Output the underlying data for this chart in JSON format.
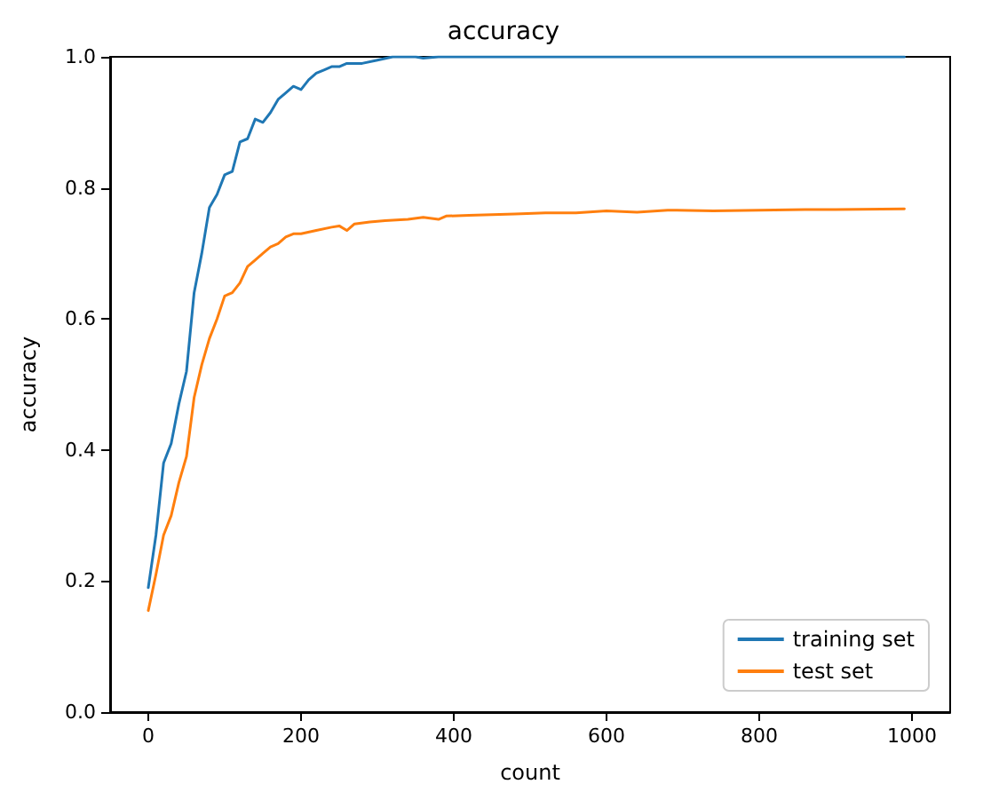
{
  "chart_data": {
    "type": "line",
    "title": "accuracy",
    "xlabel": "count",
    "ylabel": "accuracy",
    "xlim": [
      -50,
      1050
    ],
    "xticks": [
      0,
      200,
      400,
      600,
      800,
      1000
    ],
    "ylim": [
      0,
      1
    ],
    "yticks": [
      {
        "value": 0,
        "label": "0.0"
      },
      0.2,
      0.4,
      0.6,
      0.8,
      {
        "value": 1,
        "label": "1.0"
      }
    ],
    "grid": false,
    "legend": "bottom right",
    "marker": "none",
    "line_style": "solid",
    "series": [
      {
        "name": "training set",
        "color": "#1f77b4",
        "x": [
          0,
          10,
          20,
          30,
          40,
          50,
          60,
          70,
          80,
          90,
          100,
          110,
          120,
          130,
          140,
          150,
          160,
          170,
          180,
          190,
          200,
          210,
          220,
          230,
          240,
          250,
          260,
          280,
          300,
          320,
          350,
          360,
          380,
          450,
          550,
          650,
          750,
          850,
          990
        ],
        "values": [
          0.19,
          0.27,
          0.38,
          0.41,
          0.47,
          0.52,
          0.64,
          0.7,
          0.77,
          0.79,
          0.82,
          0.825,
          0.87,
          0.875,
          0.905,
          0.9,
          0.915,
          0.935,
          0.945,
          0.955,
          0.95,
          0.965,
          0.975,
          0.98,
          0.985,
          0.985,
          0.99,
          0.99,
          0.995,
          1,
          1,
          0.998,
          1,
          1,
          1,
          1,
          1,
          1,
          1
        ]
      },
      {
        "name": "test set",
        "color": "#ff7f0e",
        "x": [
          0,
          10,
          20,
          30,
          40,
          50,
          60,
          70,
          80,
          90,
          100,
          110,
          120,
          130,
          140,
          150,
          160,
          170,
          180,
          190,
          200,
          220,
          240,
          250,
          260,
          270,
          290,
          310,
          340,
          360,
          380,
          390,
          420,
          480,
          520,
          560,
          600,
          640,
          680,
          740,
          800,
          860,
          900,
          990
        ],
        "values": [
          0.155,
          0.21,
          0.27,
          0.3,
          0.35,
          0.39,
          0.48,
          0.53,
          0.57,
          0.6,
          0.635,
          0.64,
          0.655,
          0.68,
          0.69,
          0.7,
          0.71,
          0.715,
          0.725,
          0.73,
          0.73,
          0.735,
          0.74,
          0.742,
          0.735,
          0.745,
          0.748,
          0.75,
          0.752,
          0.755,
          0.752,
          0.757,
          0.758,
          0.76,
          0.762,
          0.762,
          0.765,
          0.763,
          0.766,
          0.765,
          0.766,
          0.767,
          0.767,
          0.768
        ]
      }
    ]
  }
}
